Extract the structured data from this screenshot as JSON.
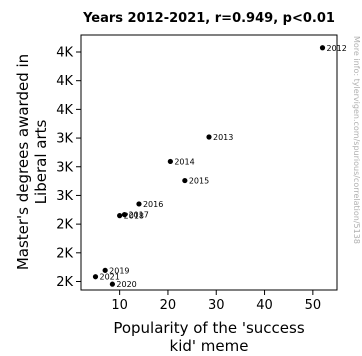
{
  "chart_data": {
    "type": "scatter",
    "title": "Years 2012-2021, r=0.949, p<0.01",
    "xlabel_lines": [
      "Popularity of the 'success",
      "kid' meme"
    ],
    "ylabel_lines": [
      "Master's degrees awarded in",
      "Liberal arts"
    ],
    "xlim": [
      2,
      55
    ],
    "ylim": [
      1850,
      4250
    ],
    "x_ticks": [
      {
        "value": 10,
        "label": "10"
      },
      {
        "value": 20,
        "label": "20"
      },
      {
        "value": 30,
        "label": "30"
      },
      {
        "value": 40,
        "label": "40"
      },
      {
        "value": 50,
        "label": "50"
      }
    ],
    "y_ticks": [
      {
        "value": 1930,
        "label": "2K"
      },
      {
        "value": 2200,
        "label": "2K"
      },
      {
        "value": 2470,
        "label": "2K"
      },
      {
        "value": 2740,
        "label": "3K"
      },
      {
        "value": 3010,
        "label": "3K"
      },
      {
        "value": 3280,
        "label": "3K"
      },
      {
        "value": 3550,
        "label": "4K"
      },
      {
        "value": 3820,
        "label": "4K"
      },
      {
        "value": 4090,
        "label": "4K"
      }
    ],
    "points": [
      {
        "year": "2012",
        "x": 52,
        "y": 4130
      },
      {
        "year": "2013",
        "x": 28.5,
        "y": 3290
      },
      {
        "year": "2014",
        "x": 20.5,
        "y": 3060
      },
      {
        "year": "2015",
        "x": 23.5,
        "y": 2880
      },
      {
        "year": "2016",
        "x": 14,
        "y": 2660
      },
      {
        "year": "2017",
        "x": 11,
        "y": 2560
      },
      {
        "year": "2018",
        "x": 10,
        "y": 2550
      },
      {
        "year": "2019",
        "x": 7,
        "y": 2035
      },
      {
        "year": "2020",
        "x": 8.5,
        "y": 1905
      },
      {
        "year": "2021",
        "x": 5,
        "y": 1975
      }
    ],
    "grid": false,
    "point_color": "#000000"
  },
  "watermark": "More info: tylervigen.com/spurious/correlation/5138"
}
